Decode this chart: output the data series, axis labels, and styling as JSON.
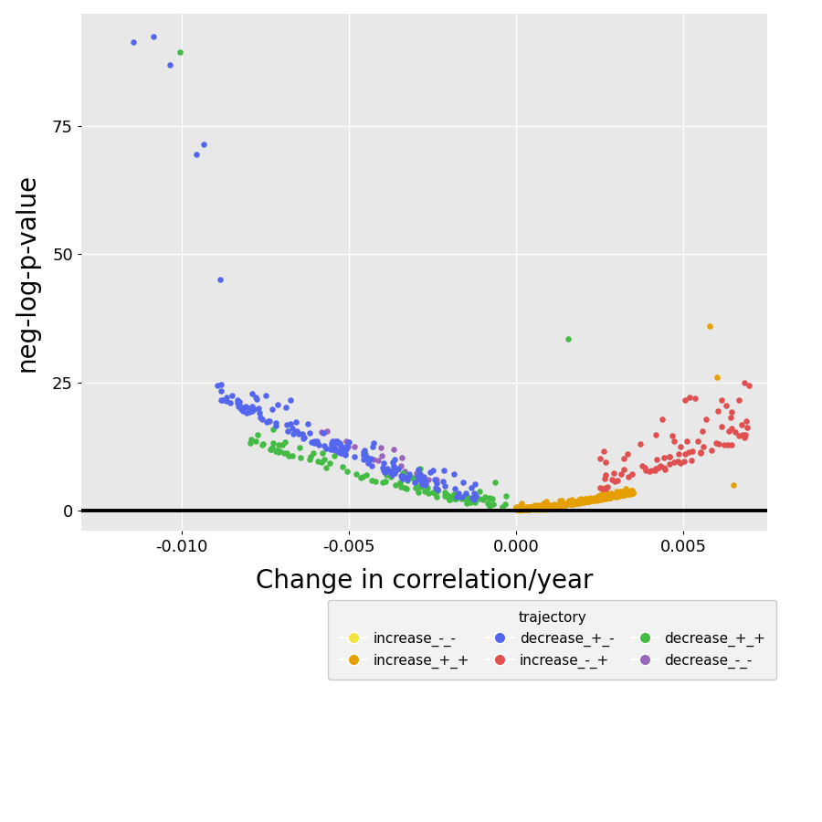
{
  "background_color": "#e8e8e8",
  "grid_color": "white",
  "xlabel": "Change in correlation/year",
  "ylabel": "neg-log-p-value",
  "xlim": [
    -0.013,
    0.0075
  ],
  "ylim": [
    -4,
    97
  ],
  "hline_y": 0,
  "xlabel_fontsize": 20,
  "ylabel_fontsize": 20,
  "tick_fontsize": 13,
  "legend_title": "trajectory",
  "colors": {
    "increase_m_m": "#F0E442",
    "increase_p_p": "#E69F00",
    "increase_m_p": "#E05050",
    "decrease_p_p": "#44BB44",
    "decrease_p_m": "#5566EE",
    "decrease_m_m": "#9966BB"
  },
  "seed": 42
}
